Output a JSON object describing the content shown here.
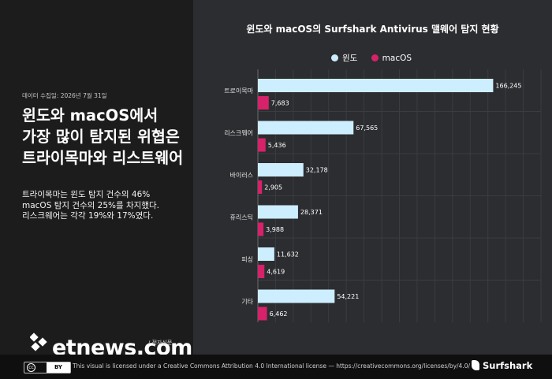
{
  "left": {
    "date": "데이터 수집일: 2026년 7월 31일",
    "headline": [
      "윈도와 macOS에서",
      "가장 많이 탐지된 위협은",
      "트라이목마와 리스트웨어"
    ],
    "body": [
      "트라이목마는 윈도 탐지 건수의 46%",
      "macOS 탐지 건수의 25%를 차지했다.",
      "리스크웨어는 각각 19%와 17%였다."
    ],
    "logo_text": "etnews.com",
    "logo_sub": "/ 전자신문"
  },
  "footer": {
    "cc_a": "cc",
    "cc_b": "BY",
    "license": "This visual is licensed under a Creative Commons Attribution 4.0 International license — https://creativecommons.org/licenses/by/4.0/",
    "brand": "Surfshark"
  },
  "colors": {
    "windows": "#cdeeff",
    "macos": "#d6226a",
    "grid": "#3b3c40"
  },
  "chart_data": {
    "type": "bar",
    "orientation": "horizontal",
    "title": "윈도와 macOS의 Surfshark Antivirus 맬웨어 탐지 현황",
    "categories": [
      "트로이목마",
      "리스크웨어",
      "바이러스",
      "휴리스틱",
      "피싱",
      "기타"
    ],
    "series": [
      {
        "name": "윈도",
        "values": [
          166245,
          67565,
          32178,
          28371,
          11632,
          54221
        ]
      },
      {
        "name": "macOS",
        "values": [
          7683,
          5436,
          2905,
          3988,
          4619,
          6462
        ]
      }
    ],
    "value_labels": {
      "윈도": [
        "166,245",
        "67,565",
        "32,178",
        "28,371",
        "11,632",
        "54,221"
      ],
      "macOS": [
        "7,683",
        "5,436",
        "2,905",
        "3,988",
        "4,619",
        "6,462"
      ]
    },
    "xlim": [
      0,
      200000
    ],
    "grid": true,
    "legend_position": "top"
  }
}
